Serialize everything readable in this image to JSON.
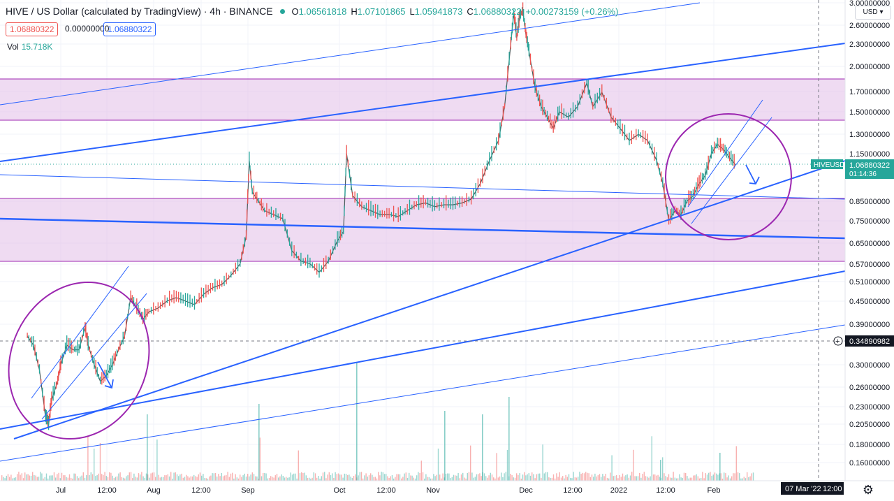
{
  "header": {
    "title": "HIVE / US Dollar (calculated by TradingView) · 4h · BINANCE",
    "ohlc": [
      {
        "k": "O",
        "v": "1.06561818"
      },
      {
        "k": "H",
        "v": "1.07101865"
      },
      {
        "k": "L",
        "v": "1.05941873"
      },
      {
        "k": "C",
        "v": "1.06880322"
      }
    ],
    "change": "+0.00273159 (+0.26%)",
    "sell_price": "1.06880322",
    "spread": "0.00000000",
    "buy_price": "1.06880322",
    "volume_label": "Vol",
    "volume_value": "15.718K",
    "currency": "USD"
  },
  "colors": {
    "up": "#26a69a",
    "down": "#ef5350",
    "trendline": "#2962ff",
    "zone_fill": "#e1bee7",
    "zone_border": "#9c27b0",
    "circle": "#9c27b0",
    "axis_text": "#131722"
  },
  "chart_data": {
    "type": "line",
    "symbol": "HIVEUSD",
    "y_scale": "log",
    "y_ticks": [
      "3.00000000",
      "2.60000000",
      "2.30000000",
      "2.00000000",
      "1.70000000",
      "1.50000000",
      "1.30000000",
      "1.15000000",
      "0.85000000",
      "0.75000000",
      "0.65000000",
      "0.57000000",
      "0.51000000",
      "0.45000000",
      "0.39000000",
      "0.30000000",
      "0.26000000",
      "0.23000000",
      "0.20500000",
      "0.18000000",
      "0.16000000"
    ],
    "x_ticks": [
      "Jul",
      "12:00",
      "Aug",
      "12:00",
      "Sep",
      "Oct",
      "12:00",
      "Nov",
      "Dec",
      "12:00",
      "2022",
      "12:00",
      "Feb"
    ],
    "last_price_label": "1.06880322",
    "countdown": "01:14:36",
    "crosshair_price": "0.34890982",
    "crosshair_date": "07 Mar '22",
    "crosshair_time": "12:00",
    "price_path": [
      {
        "x": "Jun 20",
        "y": 0.36
      },
      {
        "x": "Jun 22",
        "y": 0.34
      },
      {
        "x": "Jun 24",
        "y": 0.29
      },
      {
        "x": "Jun 26",
        "y": 0.215
      },
      {
        "x": "Jun 27",
        "y": 0.205
      },
      {
        "x": "Jun 28",
        "y": 0.24
      },
      {
        "x": "Jun 30",
        "y": 0.27
      },
      {
        "x": "Jul 1",
        "y": 0.3
      },
      {
        "x": "Jul 3",
        "y": 0.34
      },
      {
        "x": "Jul 5",
        "y": 0.33
      },
      {
        "x": "Jul 7",
        "y": 0.33
      },
      {
        "x": "Jul 9",
        "y": 0.38
      },
      {
        "x": "Jul 10",
        "y": 0.34
      },
      {
        "x": "Jul 12",
        "y": 0.3
      },
      {
        "x": "Jul 14",
        "y": 0.27
      },
      {
        "x": "Jul 16",
        "y": 0.28
      },
      {
        "x": "Jul 18",
        "y": 0.3
      },
      {
        "x": "Jul 20",
        "y": 0.33
      },
      {
        "x": "Jul 22",
        "y": 0.36
      },
      {
        "x": "Jul 24",
        "y": 0.46
      },
      {
        "x": "Jul 26",
        "y": 0.43
      },
      {
        "x": "Jul 28",
        "y": 0.4
      },
      {
        "x": "Jul 30",
        "y": 0.42
      },
      {
        "x": "Aug 2",
        "y": 0.43
      },
      {
        "x": "Aug 5",
        "y": 0.45
      },
      {
        "x": "Aug 8",
        "y": 0.46
      },
      {
        "x": "Aug 11",
        "y": 0.45
      },
      {
        "x": "Aug 14",
        "y": 0.44
      },
      {
        "x": "Aug 17",
        "y": 0.47
      },
      {
        "x": "Aug 20",
        "y": 0.49
      },
      {
        "x": "Aug 23",
        "y": 0.5
      },
      {
        "x": "Aug 26",
        "y": 0.53
      },
      {
        "x": "Aug 29",
        "y": 0.57
      },
      {
        "x": "Aug 31",
        "y": 0.68
      },
      {
        "x": "Sep 1",
        "y": 1.1
      },
      {
        "x": "Sep 2",
        "y": 0.9
      },
      {
        "x": "Sep 4",
        "y": 0.85
      },
      {
        "x": "Sep 6",
        "y": 0.8
      },
      {
        "x": "Sep 9",
        "y": 0.78
      },
      {
        "x": "Sep 12",
        "y": 0.76
      },
      {
        "x": "Sep 15",
        "y": 0.62
      },
      {
        "x": "Sep 18",
        "y": 0.58
      },
      {
        "x": "Sep 21",
        "y": 0.57
      },
      {
        "x": "Sep 24",
        "y": 0.54
      },
      {
        "x": "Sep 27",
        "y": 0.58
      },
      {
        "x": "Sep 30",
        "y": 0.66
      },
      {
        "x": "Oct 2",
        "y": 0.7
      },
      {
        "x": "Oct 3",
        "y": 1.15
      },
      {
        "x": "Oct 5",
        "y": 0.88
      },
      {
        "x": "Oct 8",
        "y": 0.82
      },
      {
        "x": "Oct 11",
        "y": 0.8
      },
      {
        "x": "Oct 14",
        "y": 0.78
      },
      {
        "x": "Oct 17",
        "y": 0.78
      },
      {
        "x": "Oct 20",
        "y": 0.77
      },
      {
        "x": "Oct 23",
        "y": 0.8
      },
      {
        "x": "Oct 26",
        "y": 0.83
      },
      {
        "x": "Oct 29",
        "y": 0.84
      },
      {
        "x": "Nov 1",
        "y": 0.82
      },
      {
        "x": "Nov 4",
        "y": 0.83
      },
      {
        "x": "Nov 7",
        "y": 0.83
      },
      {
        "x": "Nov 10",
        "y": 0.84
      },
      {
        "x": "Nov 13",
        "y": 0.86
      },
      {
        "x": "Nov 16",
        "y": 0.95
      },
      {
        "x": "Nov 19",
        "y": 1.1
      },
      {
        "x": "Nov 22",
        "y": 1.25
      },
      {
        "x": "Nov 24",
        "y": 1.55
      },
      {
        "x": "Nov 26",
        "y": 2.3
      },
      {
        "x": "Nov 27",
        "y": 2.8
      },
      {
        "x": "Nov 28",
        "y": 2.4
      },
      {
        "x": "Nov 29",
        "y": 2.75
      },
      {
        "x": "Nov 30",
        "y": 2.85
      },
      {
        "x": "Dec 1",
        "y": 2.45
      },
      {
        "x": "Dec 2",
        "y": 2.2
      },
      {
        "x": "Dec 4",
        "y": 1.75
      },
      {
        "x": "Dec 6",
        "y": 1.55
      },
      {
        "x": "Dec 8",
        "y": 1.45
      },
      {
        "x": "Dec 10",
        "y": 1.35
      },
      {
        "x": "Dec 12",
        "y": 1.5
      },
      {
        "x": "Dec 15",
        "y": 1.45
      },
      {
        "x": "Dec 18",
        "y": 1.55
      },
      {
        "x": "Dec 21",
        "y": 1.8
      },
      {
        "x": "Dec 23",
        "y": 1.55
      },
      {
        "x": "Dec 26",
        "y": 1.7
      },
      {
        "x": "Dec 29",
        "y": 1.45
      },
      {
        "x": "Jan 1",
        "y": 1.35
      },
      {
        "x": "Jan 4",
        "y": 1.25
      },
      {
        "x": "Jan 7",
        "y": 1.3
      },
      {
        "x": "Jan 10",
        "y": 1.25
      },
      {
        "x": "Jan 13",
        "y": 1.1
      },
      {
        "x": "Jan 15",
        "y": 0.95
      },
      {
        "x": "Jan 17",
        "y": 0.75
      },
      {
        "x": "Jan 19",
        "y": 0.8
      },
      {
        "x": "Jan 21",
        "y": 0.78
      },
      {
        "x": "Jan 23",
        "y": 0.85
      },
      {
        "x": "Jan 25",
        "y": 0.88
      },
      {
        "x": "Jan 27",
        "y": 0.95
      },
      {
        "x": "Jan 29",
        "y": 1.0
      },
      {
        "x": "Jan 31",
        "y": 1.15
      },
      {
        "x": "Feb 2",
        "y": 1.22
      },
      {
        "x": "Feb 4",
        "y": 1.18
      },
      {
        "x": "Feb 6",
        "y": 1.12
      },
      {
        "x": "Feb 8",
        "y": 1.07
      }
    ]
  }
}
